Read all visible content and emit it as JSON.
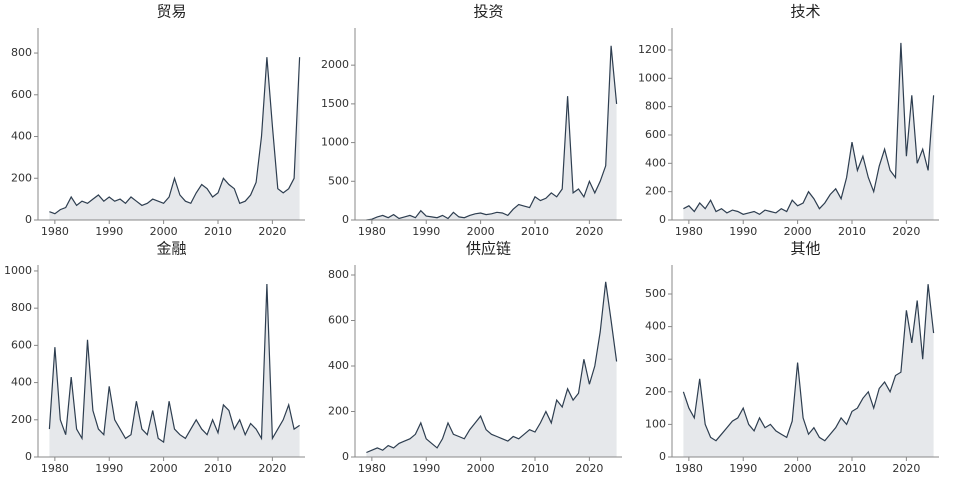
{
  "chart_data": [
    {
      "type": "line",
      "title": "贸易",
      "color": "#2e3e50",
      "fill": "#e6e8eb",
      "x": [
        1979,
        1980,
        1981,
        1982,
        1983,
        1984,
        1985,
        1986,
        1987,
        1988,
        1989,
        1990,
        1991,
        1992,
        1993,
        1994,
        1995,
        1996,
        1997,
        1998,
        1999,
        2000,
        2001,
        2002,
        2003,
        2004,
        2005,
        2006,
        2007,
        2008,
        2009,
        2010,
        2011,
        2012,
        2013,
        2014,
        2015,
        2016,
        2017,
        2018,
        2019,
        2020,
        2021,
        2022,
        2023,
        2024,
        2025
      ],
      "values": [
        40,
        30,
        50,
        60,
        110,
        70,
        90,
        80,
        100,
        120,
        90,
        110,
        90,
        100,
        80,
        110,
        90,
        70,
        80,
        100,
        90,
        80,
        110,
        200,
        120,
        90,
        80,
        130,
        170,
        150,
        110,
        130,
        200,
        170,
        150,
        80,
        90,
        120,
        180,
        400,
        780,
        450,
        150,
        130,
        150,
        200,
        780
      ],
      "xlim": [
        1976.9,
        2026
      ],
      "xticks": [
        1980,
        1990,
        2000,
        2010,
        2020
      ],
      "ylim": [
        0,
        920
      ],
      "yticks": [
        0,
        200,
        400,
        600,
        800
      ]
    },
    {
      "type": "line",
      "title": "投资",
      "color": "#2e3e50",
      "fill": "#e6e8eb",
      "x": [
        1979,
        1980,
        1981,
        1982,
        1983,
        1984,
        1985,
        1986,
        1987,
        1988,
        1989,
        1990,
        1991,
        1992,
        1993,
        1994,
        1995,
        1996,
        1997,
        1998,
        1999,
        2000,
        2001,
        2002,
        2003,
        2004,
        2005,
        2006,
        2007,
        2008,
        2009,
        2010,
        2011,
        2012,
        2013,
        2014,
        2015,
        2016,
        2017,
        2018,
        2019,
        2020,
        2021,
        2022,
        2023,
        2024,
        2025
      ],
      "values": [
        0,
        10,
        40,
        60,
        30,
        70,
        20,
        40,
        60,
        30,
        120,
        50,
        40,
        30,
        60,
        20,
        100,
        40,
        30,
        60,
        80,
        90,
        70,
        80,
        100,
        90,
        60,
        140,
        200,
        180,
        160,
        300,
        250,
        280,
        350,
        300,
        400,
        1600,
        350,
        400,
        300,
        500,
        350,
        500,
        700,
        2250,
        1500
      ],
      "xlim": [
        1976.9,
        2026
      ],
      "xticks": [
        1980,
        1990,
        2000,
        2010,
        2020
      ],
      "ylim": [
        0,
        2480
      ],
      "yticks": [
        0,
        500,
        1000,
        1500,
        2000
      ]
    },
    {
      "type": "line",
      "title": "技术",
      "color": "#2e3e50",
      "fill": "#e6e8eb",
      "x": [
        1979,
        1980,
        1981,
        1982,
        1983,
        1984,
        1985,
        1986,
        1987,
        1988,
        1989,
        1990,
        1991,
        1992,
        1993,
        1994,
        1995,
        1996,
        1997,
        1998,
        1999,
        2000,
        2001,
        2002,
        2003,
        2004,
        2005,
        2006,
        2007,
        2008,
        2009,
        2010,
        2011,
        2012,
        2013,
        2014,
        2015,
        2016,
        2017,
        2018,
        2019,
        2020,
        2021,
        2022,
        2023,
        2024,
        2025
      ],
      "values": [
        80,
        100,
        60,
        120,
        80,
        140,
        60,
        80,
        50,
        70,
        60,
        40,
        50,
        60,
        40,
        70,
        60,
        50,
        80,
        60,
        140,
        100,
        120,
        200,
        150,
        80,
        120,
        180,
        220,
        150,
        300,
        550,
        350,
        450,
        300,
        200,
        380,
        500,
        350,
        300,
        1250,
        450,
        880,
        400,
        500,
        350,
        880
      ],
      "xlim": [
        1976.9,
        2026
      ],
      "xticks": [
        1980,
        1990,
        2000,
        2010,
        2020
      ],
      "ylim": [
        0,
        1355
      ],
      "yticks": [
        0,
        200,
        400,
        600,
        800,
        1000,
        1200
      ]
    },
    {
      "type": "line",
      "title": "金融",
      "color": "#2e3e50",
      "fill": "#e6e8eb",
      "x": [
        1979,
        1980,
        1981,
        1982,
        1983,
        1984,
        1985,
        1986,
        1987,
        1988,
        1989,
        1990,
        1991,
        1992,
        1993,
        1994,
        1995,
        1996,
        1997,
        1998,
        1999,
        2000,
        2001,
        2002,
        2003,
        2004,
        2005,
        2006,
        2007,
        2008,
        2009,
        2010,
        2011,
        2012,
        2013,
        2014,
        2015,
        2016,
        2017,
        2018,
        2019,
        2020,
        2021,
        2022,
        2023,
        2024,
        2025
      ],
      "values": [
        150,
        590,
        200,
        120,
        430,
        150,
        100,
        630,
        250,
        150,
        120,
        380,
        200,
        150,
        100,
        120,
        300,
        150,
        120,
        250,
        100,
        80,
        300,
        150,
        120,
        100,
        150,
        200,
        150,
        120,
        200,
        130,
        280,
        250,
        150,
        200,
        120,
        180,
        150,
        100,
        930,
        100,
        150,
        200,
        280,
        150,
        170
      ],
      "xlim": [
        1976.9,
        2026
      ],
      "xticks": [
        1980,
        1990,
        2000,
        2010,
        2020
      ],
      "ylim": [
        0,
        1032
      ],
      "yticks": [
        0,
        200,
        400,
        600,
        800,
        1000
      ]
    },
    {
      "type": "line",
      "title": "供应链",
      "color": "#2e3e50",
      "fill": "#e6e8eb",
      "x": [
        1979,
        1980,
        1981,
        1982,
        1983,
        1984,
        1985,
        1986,
        1987,
        1988,
        1989,
        1990,
        1991,
        1992,
        1993,
        1994,
        1995,
        1996,
        1997,
        1998,
        1999,
        2000,
        2001,
        2002,
        2003,
        2004,
        2005,
        2006,
        2007,
        2008,
        2009,
        2010,
        2011,
        2012,
        2013,
        2014,
        2015,
        2016,
        2017,
        2018,
        2019,
        2020,
        2021,
        2022,
        2023,
        2024,
        2025
      ],
      "values": [
        20,
        30,
        40,
        30,
        50,
        40,
        60,
        70,
        80,
        100,
        150,
        80,
        60,
        40,
        80,
        150,
        100,
        90,
        80,
        120,
        150,
        180,
        120,
        100,
        90,
        80,
        70,
        90,
        80,
        100,
        120,
        110,
        150,
        200,
        150,
        250,
        220,
        300,
        250,
        280,
        430,
        320,
        400,
        550,
        770,
        600,
        420
      ],
      "xlim": [
        1976.9,
        2026
      ],
      "xticks": [
        1980,
        1990,
        2000,
        2010,
        2020
      ],
      "ylim": [
        0,
        844
      ],
      "yticks": [
        0,
        200,
        400,
        600,
        800
      ]
    },
    {
      "type": "line",
      "title": "其他",
      "color": "#2e3e50",
      "fill": "#e6e8eb",
      "x": [
        1979,
        1980,
        1981,
        1982,
        1983,
        1984,
        1985,
        1986,
        1987,
        1988,
        1989,
        1990,
        1991,
        1992,
        1993,
        1994,
        1995,
        1996,
        1997,
        1998,
        1999,
        2000,
        2001,
        2002,
        2003,
        2004,
        2005,
        2006,
        2007,
        2008,
        2009,
        2010,
        2011,
        2012,
        2013,
        2014,
        2015,
        2016,
        2017,
        2018,
        2019,
        2020,
        2021,
        2022,
        2023,
        2024,
        2025
      ],
      "values": [
        200,
        150,
        120,
        240,
        100,
        60,
        50,
        70,
        90,
        110,
        120,
        150,
        100,
        80,
        120,
        90,
        100,
        80,
        70,
        60,
        110,
        290,
        120,
        70,
        90,
        60,
        50,
        70,
        90,
        120,
        100,
        140,
        150,
        180,
        200,
        150,
        210,
        230,
        200,
        250,
        260,
        450,
        350,
        480,
        300,
        530,
        380
      ],
      "xlim": [
        1976.9,
        2026
      ],
      "xticks": [
        1980,
        1990,
        2000,
        2010,
        2020
      ],
      "ylim": [
        0,
        589
      ],
      "yticks": [
        0,
        100,
        200,
        300,
        400,
        500
      ]
    }
  ]
}
